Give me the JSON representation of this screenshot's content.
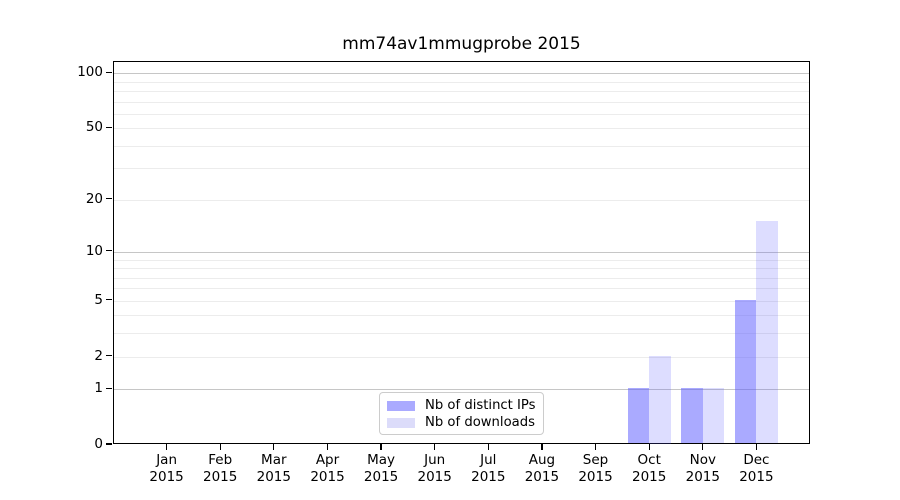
{
  "chart_data": {
    "type": "bar",
    "title": "mm74av1mmugprobe 2015",
    "categories": [
      "Jan 2015",
      "Feb 2015",
      "Mar 2015",
      "Apr 2015",
      "May 2015",
      "Jun 2015",
      "Jul 2015",
      "Aug 2015",
      "Sep 2015",
      "Oct 2015",
      "Nov 2015",
      "Dec 2015"
    ],
    "series": [
      {
        "name": "Nb of distinct IPs",
        "color_hex": "#aaaaff",
        "color_rgba": "rgba(85,85,255,0.5)",
        "values": [
          0,
          0,
          0,
          0,
          0,
          0,
          0,
          0,
          0,
          1,
          1,
          5
        ]
      },
      {
        "name": "Nb of downloads",
        "color_hex": "#dcdcfa",
        "color_rgba": "rgba(85,85,255,0.2)",
        "values": [
          0,
          0,
          0,
          0,
          0,
          0,
          0,
          0,
          0,
          2,
          1,
          15
        ]
      }
    ],
    "xlabel": "",
    "ylabel": "",
    "y_scale": "log1p",
    "ylim": [
      0,
      115
    ],
    "y_ticks": [
      0,
      1,
      2,
      5,
      10,
      20,
      50,
      100
    ],
    "grid_major_values": [
      1,
      10,
      100
    ],
    "grid_minor_values": [
      2,
      3,
      4,
      5,
      6,
      7,
      8,
      9,
      20,
      30,
      40,
      50,
      60,
      70,
      80,
      90
    ],
    "grid": "on",
    "legend_position": "lower center"
  },
  "colors": {
    "grid_major": "#c6c6c6",
    "grid_minor": "#ececec",
    "spine": "#000000",
    "background": "#ffffff"
  }
}
